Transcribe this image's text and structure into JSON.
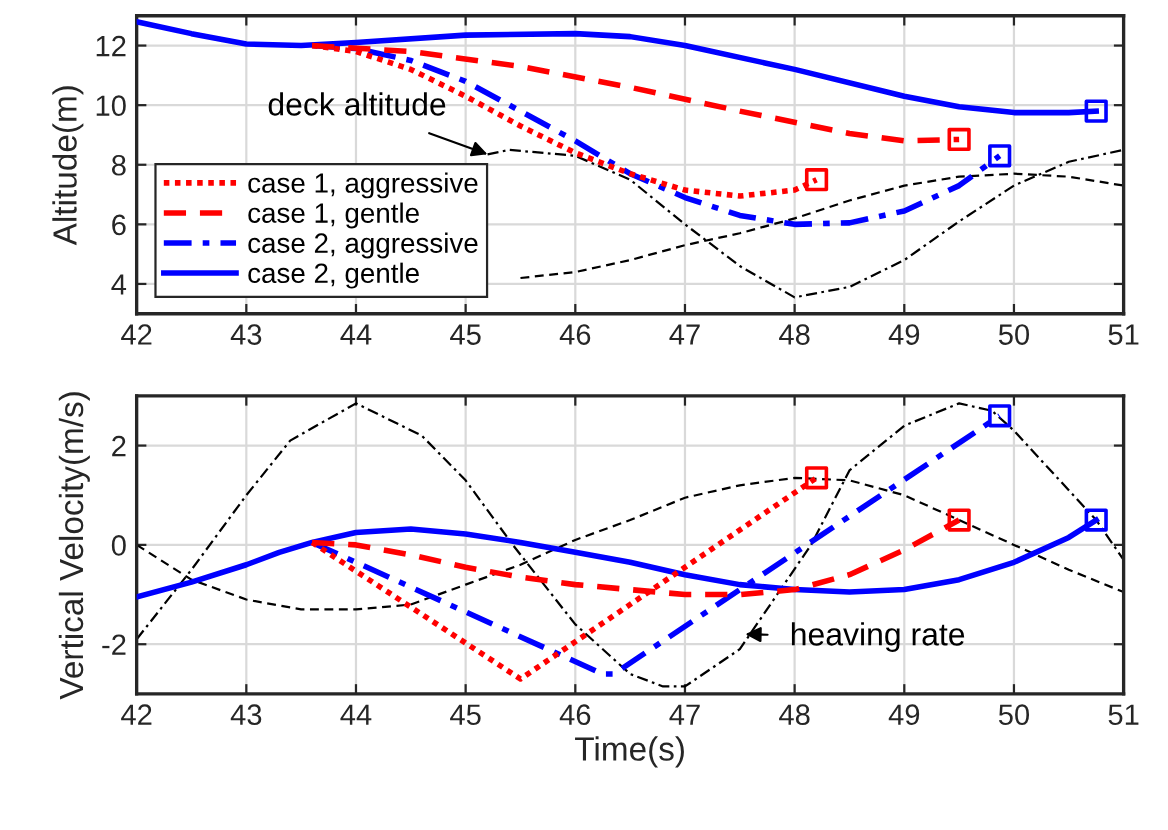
{
  "chart_data": [
    {
      "type": "line",
      "ylabel": "Altitude(m)",
      "xlim": [
        42,
        51
      ],
      "ylim": [
        3,
        13
      ],
      "xticks": [
        42,
        43,
        44,
        45,
        46,
        47,
        48,
        49,
        50,
        51
      ],
      "yticks": [
        4,
        6,
        8,
        10,
        12
      ],
      "grid": true,
      "legend": "bottom left",
      "annotations": [
        {
          "text": "deck altitude",
          "x": 45.2,
          "y": 8.35
        }
      ],
      "series": [
        {
          "name": "case 1, aggressive",
          "color": "#ff0000",
          "line_style": "dotted",
          "x": [
            43.6,
            44,
            44.5,
            45,
            45.5,
            46,
            46.5,
            47,
            47.5,
            48,
            48.2
          ],
          "values": [
            12.0,
            11.8,
            11.2,
            10.3,
            9.3,
            8.4,
            7.7,
            7.15,
            6.95,
            7.15,
            7.5
          ]
        },
        {
          "name": "case 1, gentle",
          "color": "#ff0000",
          "line_style": "dashed",
          "x": [
            43.6,
            44.5,
            45.5,
            46.5,
            47.5,
            48.5,
            49,
            49.5
          ],
          "values": [
            12.0,
            11.8,
            11.3,
            10.6,
            9.8,
            9.05,
            8.8,
            8.85
          ]
        },
        {
          "name": "case 2, aggressive",
          "color": "#0000ff",
          "line_style": "dashdot",
          "x": [
            43.6,
            44,
            44.5,
            45,
            45.5,
            46,
            46.5,
            47,
            47.5,
            48,
            48.5,
            49,
            49.5,
            49.87
          ],
          "values": [
            12.0,
            11.9,
            11.5,
            10.8,
            9.8,
            8.8,
            7.7,
            6.9,
            6.3,
            6.0,
            6.05,
            6.45,
            7.3,
            8.3
          ]
        },
        {
          "name": "case 2, gentle",
          "color": "#0000ff",
          "line_style": "solid",
          "x": [
            42,
            42.5,
            43,
            43.5,
            44,
            45,
            46,
            46.5,
            47,
            48,
            49,
            49.5,
            50,
            50.5,
            50.75
          ],
          "values": [
            12.8,
            12.4,
            12.05,
            12.0,
            12.1,
            12.35,
            12.4,
            12.3,
            12.0,
            11.2,
            10.3,
            9.95,
            9.75,
            9.75,
            9.8
          ]
        },
        {
          "type": "scatter",
          "marker": "square",
          "colors": [
            "#ff0000",
            "#ff0000",
            "#0000ff",
            "#0000ff"
          ],
          "x": [
            48.2,
            49.5,
            49.87,
            50.75
          ],
          "values": [
            7.5,
            8.85,
            8.3,
            9.8
          ]
        },
        {
          "color": "#000000",
          "line_style": "dashed",
          "x": [
            45.5,
            46,
            46.5,
            47,
            47.5,
            48,
            48.5,
            49,
            49.5,
            50,
            50.5,
            51
          ],
          "values": [
            4.2,
            4.4,
            4.8,
            5.3,
            5.7,
            6.2,
            6.8,
            7.3,
            7.6,
            7.7,
            7.6,
            7.3
          ]
        },
        {
          "color": "#000000",
          "line_style": "dashdot",
          "x": [
            45.2,
            45.4,
            46,
            46.5,
            47,
            47.5,
            48,
            48.5,
            49,
            49.5,
            50,
            50.5,
            51
          ],
          "values": [
            8.35,
            8.5,
            8.3,
            7.5,
            6.0,
            4.6,
            3.55,
            3.9,
            4.8,
            6.1,
            7.3,
            8.1,
            8.5
          ]
        }
      ]
    },
    {
      "type": "line",
      "xlabel": "Time(s)",
      "ylabel": "Vertical Velocity(m/s)",
      "xlim": [
        42,
        51
      ],
      "ylim": [
        -3,
        3
      ],
      "xticks": [
        42,
        43,
        44,
        45,
        46,
        47,
        48,
        49,
        50,
        51
      ],
      "yticks": [
        -2,
        0,
        2
      ],
      "grid": true,
      "annotations": [
        {
          "text": "heaving rate",
          "x": 47.55,
          "y": -1.8
        }
      ],
      "series": [
        {
          "color": "#ff0000",
          "line_style": "dotted",
          "x": [
            43.6,
            45.5,
            48.2
          ],
          "values": [
            0.05,
            -2.7,
            1.35
          ]
        },
        {
          "color": "#ff0000",
          "line_style": "dashed",
          "x": [
            43.6,
            44,
            44.5,
            45,
            45.5,
            46,
            46.5,
            47,
            47.5,
            48,
            48.5,
            49,
            49.5
          ],
          "values": [
            0.05,
            0.0,
            -0.2,
            -0.45,
            -0.65,
            -0.8,
            -0.9,
            -1.0,
            -1.0,
            -0.9,
            -0.6,
            -0.1,
            0.5
          ]
        },
        {
          "color": "#0000ff",
          "line_style": "dashdot",
          "x": [
            43.6,
            46.25,
            46.35,
            49.87
          ],
          "values": [
            0.05,
            -2.6,
            -2.6,
            2.6
          ]
        },
        {
          "color": "#0000ff",
          "line_style": "solid",
          "x": [
            42,
            42.5,
            43,
            43.3,
            43.6,
            44,
            44.5,
            45,
            45.5,
            46,
            46.5,
            47,
            47.5,
            48,
            48.5,
            49,
            49.5,
            50,
            50.5,
            50.75
          ],
          "values": [
            -1.05,
            -0.75,
            -0.4,
            -0.15,
            0.05,
            0.25,
            0.32,
            0.22,
            0.05,
            -0.15,
            -0.35,
            -0.6,
            -0.8,
            -0.9,
            -0.95,
            -0.9,
            -0.7,
            -0.35,
            0.15,
            0.5
          ]
        },
        {
          "type": "scatter",
          "marker": "square",
          "colors": [
            "#ff0000",
            "#ff0000",
            "#0000ff",
            "#0000ff"
          ],
          "x": [
            48.2,
            49.5,
            49.87,
            50.75
          ],
          "values": [
            1.35,
            0.5,
            2.6,
            0.5
          ]
        },
        {
          "color": "#000000",
          "line_style": "dashed",
          "x": [
            42,
            42.5,
            43,
            43.5,
            44,
            44.5,
            45,
            45.5,
            46,
            46.5,
            47,
            47.5,
            48,
            48.5,
            49,
            49.5,
            50,
            50.5,
            51
          ],
          "values": [
            0.0,
            -0.7,
            -1.1,
            -1.3,
            -1.3,
            -1.2,
            -0.8,
            -0.4,
            0.1,
            0.5,
            0.95,
            1.2,
            1.35,
            1.3,
            1.0,
            0.5,
            0.0,
            -0.5,
            -0.95
          ]
        },
        {
          "color": "#000000",
          "line_style": "dashdot",
          "x": [
            42,
            42.5,
            43,
            43.4,
            44,
            44.6,
            45,
            45.43,
            46,
            46.5,
            46.8,
            47,
            47.5,
            48.15,
            48.5,
            49,
            49.5,
            49.8,
            50,
            50.5,
            50.75,
            51
          ],
          "values": [
            -1.9,
            -0.5,
            1.0,
            2.1,
            2.85,
            2.2,
            1.3,
            0.0,
            -1.6,
            -2.6,
            -2.85,
            -2.85,
            -2.1,
            0.0,
            1.5,
            2.4,
            2.85,
            2.7,
            2.3,
            1.1,
            0.5,
            -0.3
          ]
        }
      ]
    }
  ]
}
